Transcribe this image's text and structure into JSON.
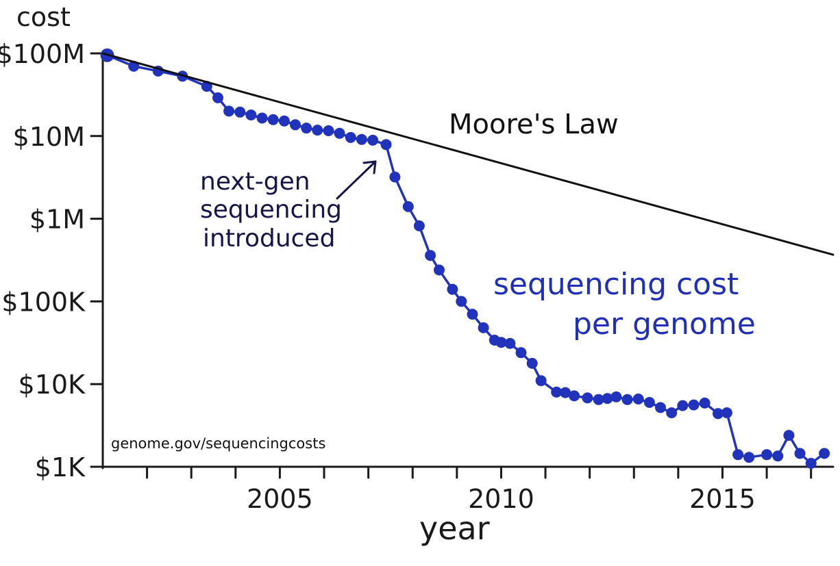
{
  "chart_data": {
    "type": "line",
    "title": "",
    "xlabel": "year",
    "ylabel": "cost",
    "y_scale": "log",
    "ylim": [
      1000,
      100000000
    ],
    "xlim": [
      2001,
      2017.5
    ],
    "grid": false,
    "y_ticks": [
      {
        "value": 100000000,
        "label": "$100M"
      },
      {
        "value": 10000000,
        "label": "$10M"
      },
      {
        "value": 1000000,
        "label": "$1M"
      },
      {
        "value": 100000,
        "label": "$100K"
      },
      {
        "value": 10000,
        "label": "$10K"
      },
      {
        "value": 1000,
        "label": "$1K"
      }
    ],
    "x_ticks": [
      2002,
      2003,
      2004,
      2005,
      2006,
      2007,
      2008,
      2009,
      2010,
      2011,
      2012,
      2013,
      2014,
      2015,
      2016,
      2017
    ],
    "x_tick_labels": [
      {
        "value": 2005,
        "label": "2005"
      },
      {
        "value": 2010,
        "label": "2010"
      },
      {
        "value": 2015,
        "label": "2015"
      }
    ],
    "series": [
      {
        "name": "sequencing cost per genome",
        "color": "#2233bb",
        "marker": "circle",
        "x": [
          2001.1,
          2001.7,
          2002.25,
          2002.8,
          2003.35,
          2003.6,
          2003.85,
          2004.1,
          2004.35,
          2004.6,
          2004.85,
          2005.1,
          2005.35,
          2005.6,
          2005.85,
          2006.1,
          2006.35,
          2006.6,
          2006.85,
          2007.1,
          2007.4,
          2007.6,
          2007.9,
          2008.15,
          2008.4,
          2008.6,
          2008.9,
          2009.1,
          2009.35,
          2009.6,
          2009.85,
          2010.0,
          2010.2,
          2010.45,
          2010.7,
          2010.9,
          2011.25,
          2011.45,
          2011.65,
          2011.95,
          2012.2,
          2012.4,
          2012.6,
          2012.85,
          2013.1,
          2013.35,
          2013.6,
          2013.85,
          2014.1,
          2014.35,
          2014.6,
          2014.9,
          2015.1,
          2015.35,
          2015.6,
          2016.0,
          2016.25,
          2016.5,
          2016.75,
          2017.0,
          2017.3
        ],
        "y": [
          95000000,
          70000000,
          61000000,
          53000000,
          40000000,
          29000000,
          20000000,
          19500000,
          18000000,
          16500000,
          15800000,
          15200000,
          13700000,
          12500000,
          11800000,
          11600000,
          10800000,
          9600000,
          9100000,
          8900000,
          7900000,
          3200000,
          1400000,
          820000,
          360000,
          240000,
          140000,
          100000,
          70000,
          48000,
          34000,
          32000,
          31000,
          24000,
          17800,
          11000,
          8000,
          7900,
          7200,
          6800,
          6500,
          6700,
          7000,
          6500,
          6600,
          6000,
          5200,
          4500,
          5500,
          5600,
          5900,
          4400,
          4500,
          1400,
          1300,
          1400,
          1350,
          2400,
          1450,
          1100,
          1450
        ]
      },
      {
        "name": "Moore's Law",
        "color": "#111111",
        "marker": "none",
        "x": [
          2001.0,
          2017.5
        ],
        "y": [
          100000000,
          367000
        ]
      }
    ],
    "annotations": [
      {
        "text": "Moore's Law"
      },
      {
        "text": "next-gen sequencing introduced"
      },
      {
        "text": "sequencing cost per genome"
      },
      {
        "text": "genome.gov/sequencingcosts"
      }
    ]
  },
  "labels": {
    "moores_law": "Moore's Law",
    "nextgen": [
      "next-gen",
      "sequencing",
      "introduced"
    ],
    "seqcost": [
      "sequencing cost",
      "per genome"
    ],
    "source": "genome.gov/sequencingcosts"
  },
  "colors": {
    "series": "#2233bb",
    "text_blue": "#1f2fb8",
    "annotation": "#15154a",
    "axis": "#1a1a1a"
  }
}
